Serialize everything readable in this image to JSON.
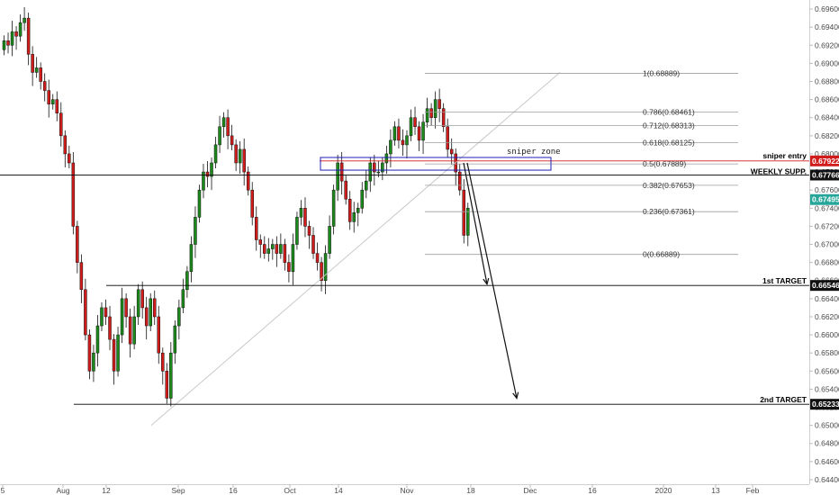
{
  "chart_data": {
    "type": "candlestick",
    "instrument_note": "",
    "y_axis": {
      "side": "right",
      "range": [
        0.6435,
        0.697
      ],
      "ticks": [
        "0.69600",
        "0.69400",
        "0.69200",
        "0.69000",
        "0.68800",
        "0.68600",
        "0.68400",
        "0.68200",
        "0.68000",
        "0.67800",
        "0.67600",
        "0.67400",
        "0.67200",
        "0.67000",
        "0.66800",
        "0.66600",
        "0.66400",
        "0.66200",
        "0.66000",
        "0.65800",
        "0.65600",
        "0.65400",
        "0.65200",
        "0.65000",
        "0.64800",
        "0.64600",
        "0.64400"
      ]
    },
    "x_axis": {
      "labels": [
        "5",
        "Aug",
        "12",
        "Sep",
        "16",
        "Oct",
        "14",
        "Nov",
        "18",
        "Dec",
        "16",
        "2020",
        "13",
        "Feb"
      ]
    },
    "grid": false,
    "candle_colors": {
      "up": "#1b8a1b",
      "down": "#d11c1c"
    },
    "candle_count": 115,
    "candle_start_index": 0,
    "ohlc_source": "approximate trace",
    "closes": [
      0.6925,
      0.692,
      0.6935,
      0.693,
      0.6945,
      0.695,
      0.691,
      0.689,
      0.6895,
      0.688,
      0.687,
      0.6855,
      0.686,
      0.6845,
      0.682,
      0.68,
      0.679,
      0.672,
      0.668,
      0.665,
      0.66,
      0.656,
      0.658,
      0.661,
      0.663,
      0.662,
      0.6595,
      0.656,
      0.66,
      0.664,
      0.662,
      0.659,
      0.662,
      0.665,
      0.663,
      0.661,
      0.664,
      0.662,
      0.658,
      0.656,
      0.653,
      0.658,
      0.661,
      0.663,
      0.665,
      0.667,
      0.67,
      0.673,
      0.676,
      0.678,
      0.6775,
      0.679,
      0.681,
      0.683,
      0.684,
      0.682,
      0.681,
      0.679,
      0.6805,
      0.678,
      0.676,
      0.673,
      0.6705,
      0.67,
      0.669,
      0.6695,
      0.67,
      0.669,
      0.67,
      0.668,
      0.667,
      0.67,
      0.673,
      0.674,
      0.672,
      0.671,
      0.669,
      0.668,
      0.666,
      0.669,
      0.672,
      0.676,
      0.679,
      0.677,
      0.675,
      0.6725,
      0.6735,
      0.674,
      0.676,
      0.677,
      0.679,
      0.678,
      0.678,
      0.679,
      0.68,
      0.6815,
      0.683,
      0.6815,
      0.681,
      0.682,
      0.684,
      0.683,
      0.6815,
      0.6835,
      0.685,
      0.684,
      0.686,
      0.685,
      0.683,
      0.6805,
      0.68,
      0.678,
      0.676,
      0.671,
      0.674
    ],
    "fibonacci": {
      "levels": [
        {
          "label": "1(0.68889)",
          "value": 0.68889
        },
        {
          "label": "0.786(0.68461)",
          "value": 0.68461
        },
        {
          "label": "0.712(0.68313)",
          "value": 0.68313
        },
        {
          "label": "0.618(0.68125)",
          "value": 0.68125
        },
        {
          "label": "0.5(0.67889)",
          "value": 0.67889
        },
        {
          "label": "0.382(0.67653)",
          "value": 0.67653
        },
        {
          "label": "0.236(0.67361)",
          "value": 0.67361
        },
        {
          "label": "0(0.66889)",
          "value": 0.66889
        }
      ],
      "color": "#9e9e9e"
    },
    "horizontal_levels": [
      {
        "name": "sniper entry",
        "value": 0.67922,
        "price_label": "0.67922",
        "color": "#d11c1c"
      },
      {
        "name": "WEEKLY SUPP.",
        "value": 0.67766,
        "price_label": "0.67766",
        "color": "#000000"
      },
      {
        "name": "1st TARGET",
        "value": 0.66546,
        "price_label": "0.66546",
        "color": "#000000"
      },
      {
        "name": "2nd TARGET",
        "value": 0.65233,
        "price_label": "0.65233",
        "color": "#000000"
      }
    ],
    "current_price": {
      "value": 0.67495,
      "price_label": "0.67495",
      "color": "#26a69a"
    },
    "annotations": {
      "zone_label": "sniper zone",
      "zone_range": [
        0.6782,
        0.6796
      ],
      "zone_color": "#1f1fb5",
      "trendline": {
        "from_value": 0.65,
        "to_value": 0.689
      },
      "arrows": [
        {
          "from_value": 0.679,
          "to_value": 0.6656
        },
        {
          "from_value": 0.679,
          "to_value": 0.653
        }
      ]
    }
  }
}
